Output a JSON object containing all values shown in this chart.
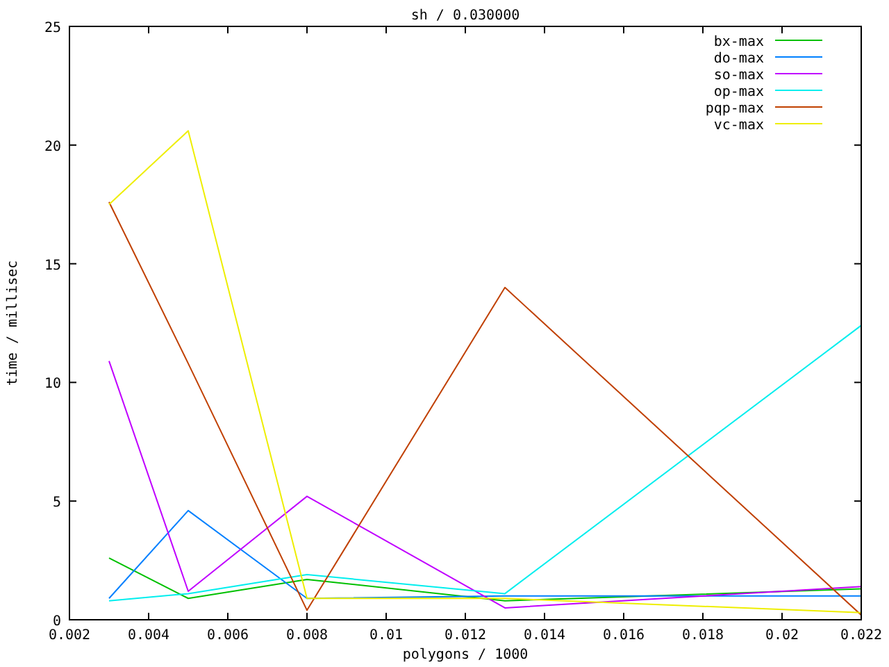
{
  "chart_data": {
    "type": "line",
    "title": "sh / 0.030000",
    "xlabel": "polygons / 1000",
    "ylabel": "time / millisec",
    "x": [
      0.003,
      0.005,
      0.008,
      0.013,
      0.022
    ],
    "xlim": [
      0.002,
      0.022
    ],
    "xticks": [
      {
        "value": 0.002,
        "label": "0.002"
      },
      {
        "value": 0.004,
        "label": "0.004"
      },
      {
        "value": 0.006,
        "label": "0.006"
      },
      {
        "value": 0.008,
        "label": "0.008"
      },
      {
        "value": 0.01,
        "label": "0.01"
      },
      {
        "value": 0.012,
        "label": "0.012"
      },
      {
        "value": 0.014,
        "label": "0.014"
      },
      {
        "value": 0.016,
        "label": "0.016"
      },
      {
        "value": 0.018,
        "label": "0.018"
      },
      {
        "value": 0.02,
        "label": "0.02"
      },
      {
        "value": 0.022,
        "label": "0.022"
      }
    ],
    "ylim": [
      0,
      25
    ],
    "yticks": [
      0,
      5,
      10,
      15,
      20,
      25
    ],
    "grid": false,
    "legend": "top right",
    "series": [
      {
        "name": "bx-max",
        "color": "#00c000",
        "values": [
          2.6,
          0.9,
          1.7,
          0.8,
          1.3
        ]
      },
      {
        "name": "do-max",
        "color": "#0080ff",
        "values": [
          0.9,
          4.6,
          0.9,
          1.0,
          1.0
        ]
      },
      {
        "name": "so-max",
        "color": "#c000ff",
        "values": [
          10.9,
          1.2,
          5.2,
          0.5,
          1.4
        ]
      },
      {
        "name": "op-max",
        "color": "#00eeee",
        "values": [
          0.8,
          1.1,
          1.9,
          1.1,
          12.4
        ]
      },
      {
        "name": "pqp-max",
        "color": "#c04000",
        "values": [
          17.6,
          10.8,
          0.4,
          14.0,
          0.2
        ]
      },
      {
        "name": "vc-max",
        "color": "#eeee00",
        "values": [
          17.5,
          20.6,
          0.9,
          0.9,
          0.3
        ]
      }
    ]
  }
}
